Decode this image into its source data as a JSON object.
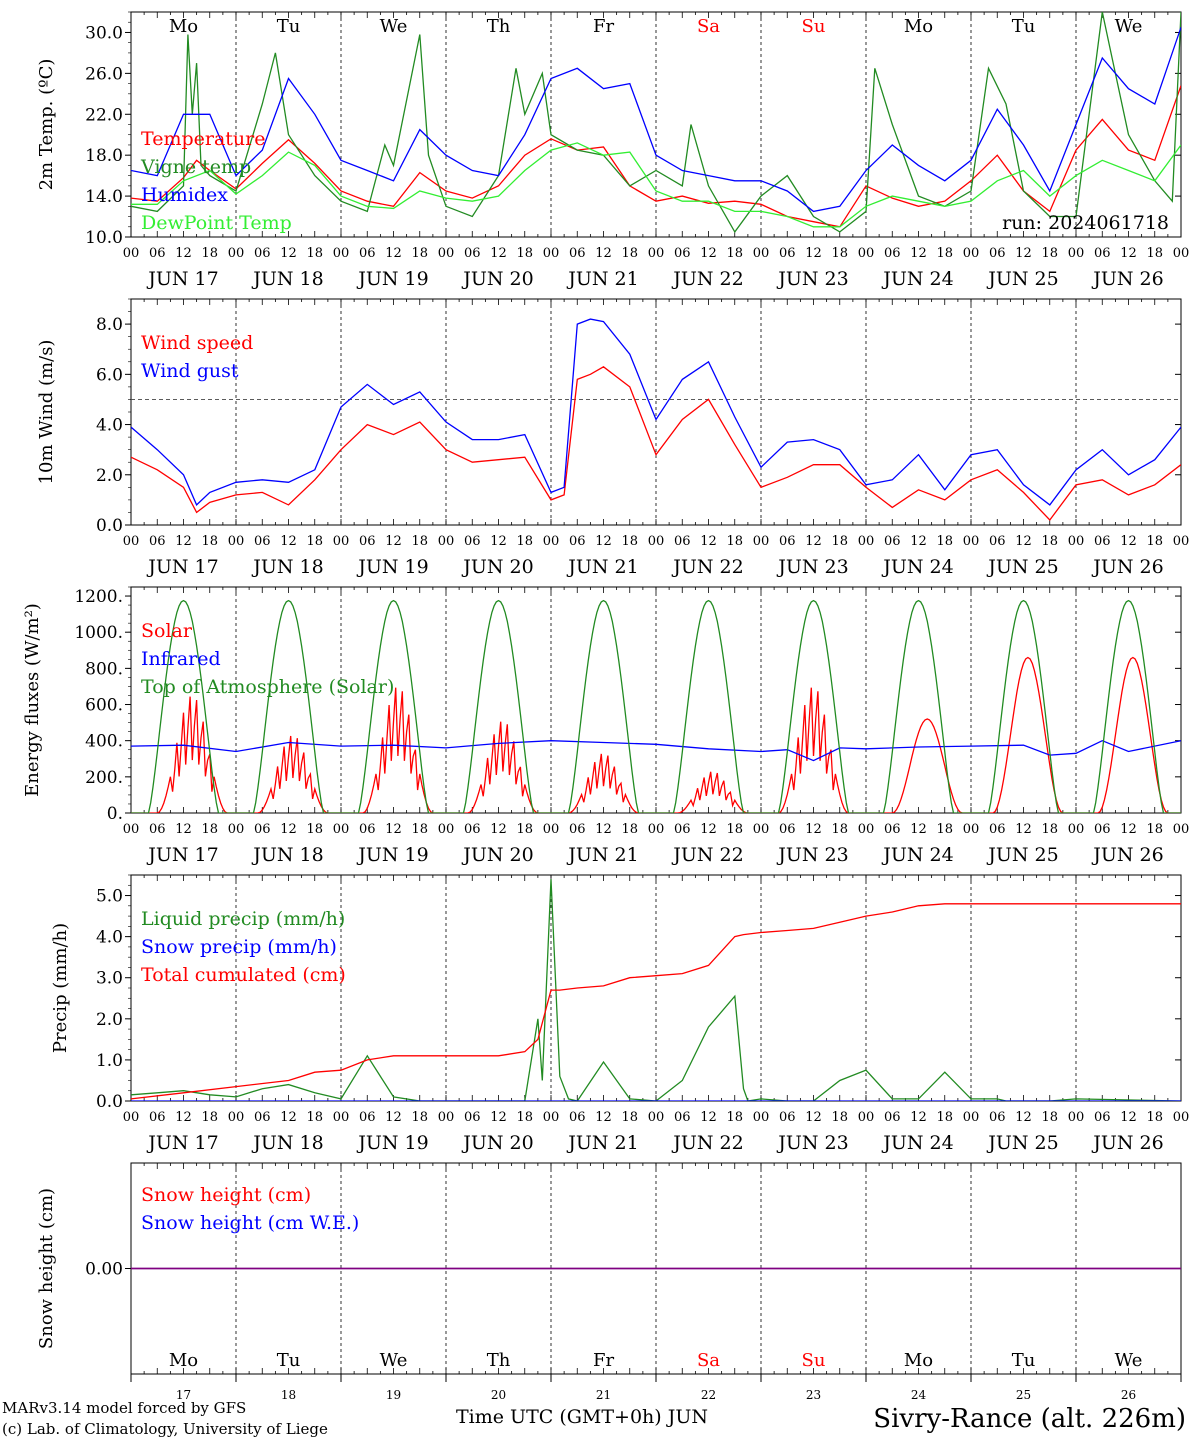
{
  "days": {
    "weekday_labels": [
      "Mo",
      "Tu",
      "We",
      "Th",
      "Fr",
      "Sa",
      "Su",
      "Mo",
      "Tu",
      "We"
    ],
    "weekday_colors": [
      "#000000",
      "#000000",
      "#000000",
      "#000000",
      "#000000",
      "#ff0000",
      "#ff0000",
      "#000000",
      "#000000",
      "#000000"
    ],
    "hour_tick_labels": [
      "00",
      "06",
      "12",
      "18"
    ],
    "final_hour_label": "00",
    "date_labels": [
      "JUN 17",
      "JUN 18",
      "JUN 19",
      "JUN 20",
      "JUN 21",
      "JUN 22",
      "JUN 23",
      "JUN 24",
      "JUN 25",
      "JUN 26"
    ],
    "day_numbers": [
      "17",
      "18",
      "19",
      "20",
      "21",
      "22",
      "23",
      "24",
      "25",
      "26"
    ]
  },
  "colors": {
    "red": "#ff0000",
    "green": "#228b22",
    "blue": "#0000ff",
    "lightgreen": "#33ee33",
    "purple": "#800080",
    "dark": "#000000"
  },
  "footer": {
    "model_line": "MARv3.14 model forced by GFS",
    "lab_line": "(c) Lab. of Climatology, University of Liege",
    "time_axis_label": "Time UTC (GMT+0h) JUN",
    "station": "Sivry-Rance (alt. 226m)"
  },
  "chart_data": [
    {
      "id": "temp",
      "type": "line",
      "ylabel": "2m Temp. (ºC)",
      "ylim": [
        10,
        32
      ],
      "yticks": [
        10,
        14,
        18,
        22,
        26,
        30
      ],
      "ytick_labels": [
        "10.0",
        "14.0",
        "18.0",
        "22.0",
        "26.0",
        "30.0"
      ],
      "annotation": "run: 2024061718",
      "series": [
        {
          "name": "Temperature",
          "color": "#ff0000",
          "x": [
            0,
            6,
            12,
            15,
            18,
            24,
            30,
            36,
            42,
            48,
            54,
            60,
            66,
            72,
            78,
            84,
            90,
            96,
            102,
            108,
            114,
            120,
            126,
            132,
            138,
            144,
            150,
            156,
            162,
            168,
            174,
            180,
            186,
            192,
            198,
            204,
            210,
            216,
            222,
            228,
            234,
            240
          ],
          "y": [
            13.8,
            13.5,
            15.8,
            17.5,
            16.5,
            14.7,
            17.2,
            19.5,
            17.2,
            14.5,
            13.5,
            13.0,
            16.3,
            14.5,
            13.8,
            15.0,
            18.0,
            19.6,
            18.5,
            18.8,
            15.0,
            13.5,
            14.0,
            13.3,
            13.5,
            13.2,
            12.0,
            11.5,
            11.0,
            15.0,
            13.8,
            13.0,
            13.5,
            15.5,
            18.0,
            14.5,
            12.5,
            18.5,
            21.5,
            18.5,
            17.5,
            24.8
          ]
        },
        {
          "name": "Vigne temp",
          "color": "#228b22",
          "x": [
            0,
            6,
            12,
            13,
            14,
            15,
            16,
            18,
            24,
            30,
            33,
            36,
            42,
            48,
            54,
            58,
            60,
            66,
            68,
            72,
            78,
            84,
            88,
            90,
            94,
            96,
            102,
            108,
            114,
            120,
            126,
            128,
            132,
            138,
            144,
            150,
            156,
            162,
            168,
            170,
            174,
            180,
            186,
            192,
            196,
            200,
            204,
            210,
            216,
            222,
            224,
            228,
            234,
            238,
            240
          ],
          "y": [
            13.0,
            12.5,
            15.0,
            29.8,
            22.0,
            27.0,
            17.0,
            16.0,
            14.5,
            23.0,
            28.0,
            20.0,
            16.0,
            13.5,
            12.5,
            19.0,
            17.0,
            29.8,
            18.0,
            13.0,
            12.0,
            16.0,
            26.5,
            22.0,
            26.0,
            20.0,
            18.5,
            18.0,
            15.0,
            16.5,
            15.0,
            21.0,
            15.0,
            10.5,
            14.0,
            16.0,
            12.0,
            10.5,
            12.5,
            26.5,
            21.0,
            14.0,
            13.0,
            14.5,
            26.5,
            23.0,
            14.5,
            12.0,
            12.0,
            32.0,
            28.0,
            20.0,
            15.5,
            13.5,
            32.0
          ]
        },
        {
          "name": "Humidex",
          "color": "#0000ff",
          "x": [
            0,
            6,
            12,
            18,
            24,
            30,
            36,
            42,
            48,
            54,
            60,
            66,
            72,
            78,
            84,
            90,
            96,
            102,
            108,
            114,
            120,
            126,
            132,
            138,
            144,
            150,
            156,
            162,
            168,
            174,
            180,
            186,
            192,
            198,
            204,
            210,
            216,
            222,
            228,
            234,
            240
          ],
          "y": [
            16.5,
            16.0,
            22.0,
            22.0,
            16.0,
            18.5,
            25.5,
            22.0,
            17.5,
            16.5,
            15.5,
            20.5,
            18.0,
            16.5,
            16.0,
            20.0,
            25.5,
            26.5,
            24.5,
            25.0,
            18.0,
            16.5,
            16.0,
            15.5,
            15.5,
            14.5,
            12.5,
            13.0,
            16.5,
            19.0,
            17.0,
            15.5,
            17.5,
            22.5,
            19.0,
            14.5,
            21.0,
            27.5,
            24.5,
            23.0,
            30.5
          ]
        },
        {
          "name": "DewPoint Temp",
          "color": "#33ee33",
          "x": [
            0,
            6,
            12,
            18,
            24,
            30,
            36,
            42,
            48,
            54,
            60,
            66,
            72,
            78,
            84,
            90,
            96,
            102,
            108,
            114,
            120,
            126,
            132,
            138,
            144,
            150,
            156,
            162,
            168,
            174,
            180,
            186,
            192,
            198,
            204,
            210,
            216,
            222,
            228,
            234,
            240
          ],
          "y": [
            13.2,
            13.2,
            15.5,
            16.5,
            14.2,
            16.0,
            18.3,
            17.0,
            14.0,
            13.0,
            12.8,
            14.5,
            13.8,
            13.5,
            14.0,
            16.5,
            18.5,
            19.2,
            18.0,
            18.3,
            14.5,
            13.5,
            13.5,
            12.5,
            12.5,
            12.0,
            11.0,
            11.0,
            13.0,
            14.0,
            13.5,
            13.0,
            13.5,
            15.5,
            16.5,
            14.0,
            16.0,
            17.5,
            16.5,
            15.5,
            19.0
          ]
        }
      ]
    },
    {
      "id": "wind",
      "type": "line",
      "ylabel": "10m Wind (m/s)",
      "ylim": [
        0,
        9
      ],
      "yticks": [
        0,
        2,
        4,
        6,
        8
      ],
      "ytick_labels": [
        "0.0",
        "2.0",
        "4.0",
        "6.0",
        "8.0"
      ],
      "ref_line": 5,
      "series": [
        {
          "name": "Wind speed",
          "color": "#ff0000",
          "x": [
            0,
            6,
            12,
            15,
            18,
            24,
            30,
            36,
            42,
            48,
            54,
            60,
            66,
            72,
            78,
            84,
            90,
            96,
            99,
            102,
            105,
            108,
            114,
            120,
            126,
            132,
            138,
            144,
            150,
            156,
            162,
            168,
            174,
            180,
            186,
            192,
            198,
            204,
            210,
            216,
            222,
            228,
            234,
            240
          ],
          "y": [
            2.7,
            2.2,
            1.5,
            0.5,
            0.9,
            1.2,
            1.3,
            0.8,
            1.8,
            3.0,
            4.0,
            3.6,
            4.1,
            3.0,
            2.5,
            2.6,
            2.7,
            1.0,
            1.2,
            5.8,
            6.0,
            6.3,
            5.5,
            2.8,
            4.2,
            5.0,
            3.2,
            1.5,
            1.9,
            2.4,
            2.4,
            1.5,
            0.7,
            1.4,
            1.0,
            1.8,
            2.2,
            1.3,
            0.2,
            1.6,
            1.8,
            1.2,
            1.6,
            2.4
          ]
        },
        {
          "name": "Wind gust",
          "color": "#0000ff",
          "x": [
            0,
            6,
            12,
            15,
            18,
            24,
            30,
            36,
            42,
            48,
            54,
            60,
            66,
            72,
            78,
            84,
            90,
            96,
            99,
            102,
            105,
            108,
            114,
            120,
            126,
            132,
            138,
            144,
            150,
            156,
            162,
            168,
            174,
            180,
            186,
            192,
            198,
            204,
            210,
            216,
            222,
            228,
            234,
            240
          ],
          "y": [
            3.9,
            3.0,
            2.0,
            0.8,
            1.3,
            1.7,
            1.8,
            1.7,
            2.2,
            4.7,
            5.6,
            4.8,
            5.3,
            4.1,
            3.4,
            3.4,
            3.6,
            1.3,
            1.5,
            8.0,
            8.2,
            8.1,
            6.8,
            4.2,
            5.8,
            6.5,
            4.3,
            2.3,
            3.3,
            3.4,
            3.0,
            1.6,
            1.8,
            2.8,
            1.4,
            2.8,
            3.0,
            1.6,
            0.8,
            2.2,
            3.0,
            2.0,
            2.6,
            3.9
          ]
        }
      ]
    },
    {
      "id": "energy",
      "type": "line",
      "ylabel": "Energy fluxes (W/m²)",
      "ylim": [
        0,
        1250
      ],
      "yticks": [
        0,
        200,
        400,
        600,
        800,
        1000,
        1200
      ],
      "ytick_labels": [
        "0.",
        "200.",
        "400.",
        "600.",
        "800.",
        "1000.",
        "1200."
      ],
      "series": [
        {
          "name": "Solar",
          "color": "#ff0000",
          "day_peak_hours": [
            14,
            13,
            13,
            13,
            12,
            13,
            12,
            14,
            13,
            13
          ],
          "day_peaks": [
            650,
            430,
            700,
            510,
            330,
            230,
            700,
            520,
            860,
            860
          ],
          "day_ripple": [
            true,
            true,
            true,
            true,
            true,
            true,
            true,
            false,
            false,
            false
          ]
        },
        {
          "name": "Infrared",
          "color": "#0000ff",
          "x": [
            0,
            12,
            24,
            36,
            48,
            60,
            72,
            84,
            96,
            108,
            120,
            132,
            144,
            150,
            156,
            162,
            168,
            180,
            192,
            204,
            210,
            216,
            222,
            228,
            240
          ],
          "y": [
            370,
            375,
            340,
            390,
            370,
            375,
            360,
            385,
            400,
            390,
            380,
            355,
            340,
            350,
            290,
            360,
            355,
            365,
            370,
            375,
            320,
            330,
            400,
            340,
            400
          ]
        },
        {
          "name": "Top of Atmosphere (Solar)",
          "color": "#228b22",
          "day_peak_hours": [
            12,
            12,
            12,
            12,
            12,
            12,
            12,
            12,
            12,
            12
          ],
          "day_peaks": [
            1175,
            1175,
            1175,
            1175,
            1175,
            1175,
            1175,
            1175,
            1175,
            1175
          ]
        }
      ]
    },
    {
      "id": "precip",
      "type": "line",
      "ylabel": "Precip (mm/h)",
      "ylim": [
        0,
        5.5
      ],
      "yticks": [
        0,
        1,
        2,
        3,
        4,
        5
      ],
      "ytick_labels": [
        "0.0",
        "1.0",
        "2.0",
        "3.0",
        "4.0",
        "5.0"
      ],
      "series": [
        {
          "name": "Liquid precip (mm/h)",
          "color": "#228b22",
          "x": [
            0,
            6,
            12,
            18,
            24,
            30,
            36,
            42,
            48,
            54,
            60,
            66,
            72,
            84,
            90,
            93,
            94,
            96,
            98,
            100,
            102,
            108,
            114,
            120,
            126,
            132,
            138,
            140,
            141,
            144,
            150,
            156,
            162,
            168,
            174,
            180,
            186,
            192,
            198,
            200,
            204,
            210,
            216,
            240
          ],
          "y": [
            0.15,
            0.2,
            0.25,
            0.15,
            0.1,
            0.3,
            0.4,
            0.2,
            0.05,
            1.1,
            0.1,
            0,
            0,
            0,
            0,
            2.0,
            0.5,
            5.4,
            0.6,
            0.05,
            0,
            0.95,
            0.05,
            0,
            0.5,
            1.8,
            2.55,
            0.3,
            0,
            0.05,
            0,
            0,
            0.5,
            0.75,
            0.05,
            0.05,
            0.7,
            0.05,
            0.05,
            0,
            0,
            0,
            0.05,
            0
          ]
        },
        {
          "name": "Snow precip (mm/h)",
          "color": "#0000ff",
          "x": [
            0,
            240
          ],
          "y": [
            0,
            0
          ]
        },
        {
          "name": "Total cumulated (cm)",
          "color": "#ff0000",
          "x": [
            0,
            12,
            24,
            36,
            42,
            48,
            54,
            60,
            72,
            84,
            90,
            93,
            96,
            98,
            102,
            108,
            114,
            120,
            126,
            132,
            138,
            140,
            144,
            150,
            156,
            162,
            168,
            174,
            180,
            186,
            192,
            198,
            204,
            216,
            228,
            240
          ],
          "y": [
            0.05,
            0.2,
            0.35,
            0.5,
            0.7,
            0.75,
            1.0,
            1.1,
            1.1,
            1.1,
            1.2,
            1.5,
            2.7,
            2.7,
            2.75,
            2.8,
            3.0,
            3.05,
            3.1,
            3.3,
            4.0,
            4.05,
            4.1,
            4.15,
            4.2,
            4.35,
            4.5,
            4.6,
            4.75,
            4.8,
            4.8,
            4.8,
            4.8,
            4.8,
            4.8,
            4.8
          ]
        }
      ]
    },
    {
      "id": "snow",
      "type": "line",
      "ylabel": "Snow height (cm)",
      "ylim": [
        -1,
        1
      ],
      "yticks": [
        0
      ],
      "ytick_labels": [
        "0.00"
      ],
      "series": [
        {
          "name": "Snow height (cm)",
          "color": "#ff0000",
          "x": [
            0,
            240
          ],
          "y": [
            0,
            0
          ]
        },
        {
          "name": "Snow height (cm W.E.)",
          "color": "#0000ff",
          "x": [
            0,
            240
          ],
          "y": [
            0,
            0
          ]
        }
      ]
    }
  ]
}
